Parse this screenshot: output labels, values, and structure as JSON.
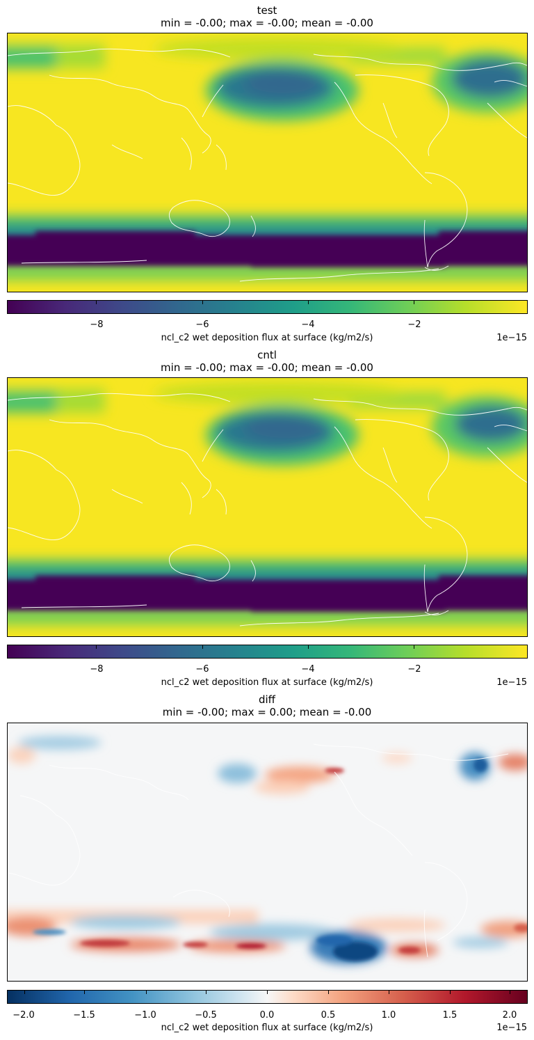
{
  "chart_data": [
    {
      "type": "heatmap",
      "title": "test",
      "subtitle": "min = -0.00; max = -0.00; mean = -0.00",
      "colormap": "viridis",
      "clim": [
        -9.6,
        -0.2
      ],
      "colorbar": {
        "label": "ncl_c2 wet deposition flux at surface (kg/m2/s)",
        "ticks": [
          -8,
          -6,
          -4,
          -2
        ],
        "tick_labels": [
          "−8",
          "−6",
          "−4",
          "−2"
        ],
        "exponent": "1e−15"
      }
    },
    {
      "type": "heatmap",
      "title": "cntl",
      "subtitle": "min = -0.00; max = -0.00; mean = -0.00",
      "colormap": "viridis",
      "clim": [
        -9.6,
        -0.2
      ],
      "colorbar": {
        "label": "ncl_c2 wet deposition flux at surface (kg/m2/s)",
        "ticks": [
          -8,
          -6,
          -4,
          -2
        ],
        "tick_labels": [
          "−8",
          "−6",
          "−4",
          "−2"
        ],
        "exponent": "1e−15"
      }
    },
    {
      "type": "heatmap",
      "title": "diff",
      "subtitle": "min = -0.00; max = 0.00; mean = -0.00",
      "colormap": "RdBu_r",
      "clim": [
        -2.15,
        2.15
      ],
      "colorbar": {
        "label": "ncl_c2 wet deposition flux at surface (kg/m2/s)",
        "ticks": [
          -2.0,
          -1.5,
          -1.0,
          -0.5,
          0.0,
          0.5,
          1.0,
          1.5,
          2.0
        ],
        "tick_labels": [
          "−2.0",
          "−1.5",
          "−1.0",
          "−0.5",
          "0.0",
          "0.5",
          "1.0",
          "1.5",
          "2.0"
        ],
        "exponent": "1e−15"
      }
    }
  ]
}
